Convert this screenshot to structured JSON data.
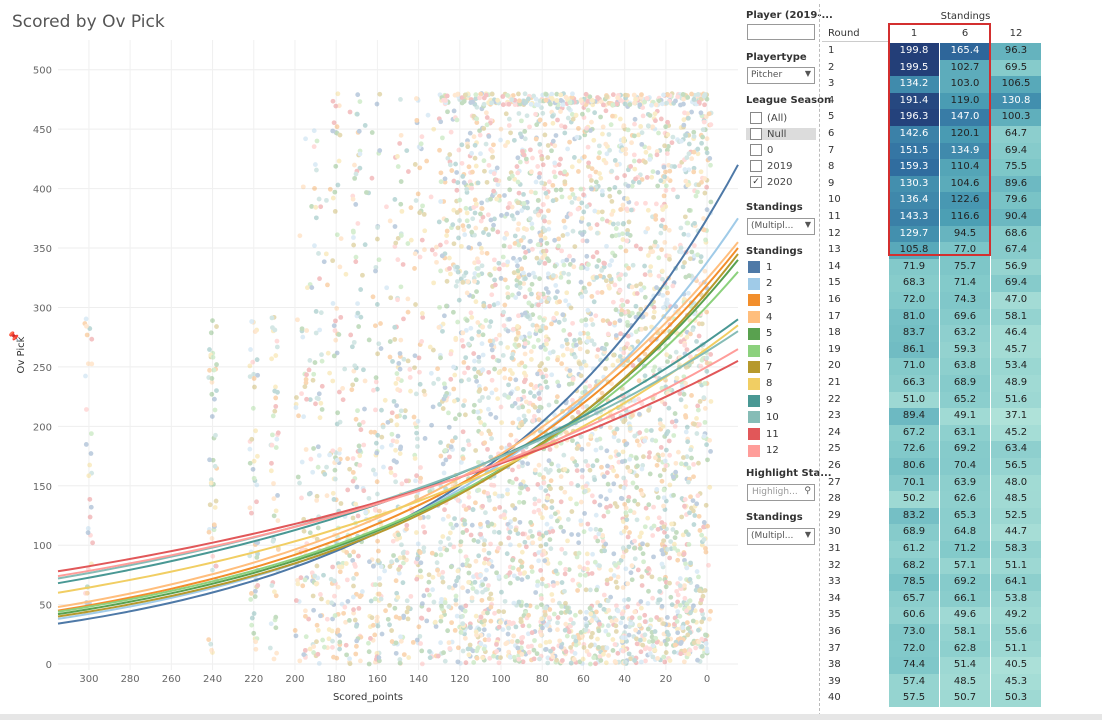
{
  "title": "Scored by Ov Pick",
  "chart_data": {
    "type": "scatter",
    "title": "Scored by Ov Pick",
    "xlabel": "Scored_points",
    "ylabel": "Ov Pick",
    "x_ticks": [
      300,
      280,
      260,
      240,
      220,
      200,
      180,
      160,
      140,
      120,
      100,
      80,
      60,
      40,
      20,
      0
    ],
    "y_ticks": [
      0,
      50,
      100,
      150,
      200,
      250,
      300,
      350,
      400,
      450,
      500
    ],
    "xlim": [
      315,
      -15
    ],
    "ylim": [
      -5,
      525
    ],
    "x_reversed": true,
    "trend_lines": [
      {
        "standing": "1",
        "color": "#4e79a7",
        "y_at_315": 34,
        "y_at_-15": 420
      },
      {
        "standing": "2",
        "color": "#a0cbe8",
        "y_at_315": 38,
        "y_at_-15": 375
      },
      {
        "standing": "3",
        "color": "#f28e2b",
        "y_at_315": 45,
        "y_at_-15": 350
      },
      {
        "standing": "4",
        "color": "#ffbe7d",
        "y_at_315": 48,
        "y_at_-15": 355
      },
      {
        "standing": "5",
        "color": "#59a14f",
        "y_at_315": 42,
        "y_at_-15": 340
      },
      {
        "standing": "6",
        "color": "#8cd17d",
        "y_at_315": 44,
        "y_at_-15": 330
      },
      {
        "standing": "7",
        "color": "#b6992d",
        "y_at_315": 40,
        "y_at_-15": 345
      },
      {
        "standing": "8",
        "color": "#f1ce63",
        "y_at_315": 60,
        "y_at_-15": 285
      },
      {
        "standing": "9",
        "color": "#499894",
        "y_at_315": 68,
        "y_at_-15": 290
      },
      {
        "standing": "10",
        "color": "#86bcb6",
        "y_at_315": 72,
        "y_at_-15": 280
      },
      {
        "standing": "11",
        "color": "#e15759",
        "y_at_315": 78,
        "y_at_-15": 255
      },
      {
        "standing": "12",
        "color": "#ff9d9a",
        "y_at_315": 74,
        "y_at_-15": 265
      }
    ]
  },
  "filters": {
    "player_label": "Player (2019-...",
    "player_value": "",
    "playertype_label": "Playertype",
    "playertype_value": "Pitcher",
    "league_season_label": "League Season",
    "season_options": [
      {
        "label": "(All)",
        "checked": false
      },
      {
        "label": "Null",
        "checked": false
      },
      {
        "label": "0",
        "checked": false
      },
      {
        "label": "2019",
        "checked": false
      },
      {
        "label": "2020",
        "checked": true
      }
    ],
    "standings_label": "Standings",
    "standings_value": "(Multipl...",
    "legend_title": "Standings",
    "legend": [
      {
        "label": "1",
        "color": "#4e79a7"
      },
      {
        "label": "2",
        "color": "#a0cbe8"
      },
      {
        "label": "3",
        "color": "#f28e2b"
      },
      {
        "label": "4",
        "color": "#ffbe7d"
      },
      {
        "label": "5",
        "color": "#59a14f"
      },
      {
        "label": "6",
        "color": "#8cd17d"
      },
      {
        "label": "7",
        "color": "#b6992d"
      },
      {
        "label": "8",
        "color": "#f1ce63"
      },
      {
        "label": "9",
        "color": "#499894"
      },
      {
        "label": "10",
        "color": "#86bcb6"
      },
      {
        "label": "11",
        "color": "#e15759"
      },
      {
        "label": "12",
        "color": "#ff9d9a"
      }
    ],
    "highlight_label": "Highlight Sta...",
    "highlight_placeholder": "Highligh...",
    "standings2_label": "Standings",
    "standings2_value": "(Multipl..."
  },
  "table": {
    "group_header": "Standings",
    "row_header": "Round",
    "col_headers": [
      "1",
      "6",
      "12"
    ],
    "rows": [
      [
        "1",
        "199.8",
        "165.4",
        "96.3"
      ],
      [
        "2",
        "199.5",
        "102.7",
        "69.5"
      ],
      [
        "3",
        "134.2",
        "103.0",
        "106.5"
      ],
      [
        "4",
        "191.4",
        "119.0",
        "130.8"
      ],
      [
        "5",
        "196.3",
        "147.0",
        "100.3"
      ],
      [
        "6",
        "142.6",
        "120.1",
        "64.7"
      ],
      [
        "7",
        "151.5",
        "134.9",
        "69.4"
      ],
      [
        "8",
        "159.3",
        "110.4",
        "75.5"
      ],
      [
        "9",
        "130.3",
        "104.6",
        "89.6"
      ],
      [
        "10",
        "136.4",
        "122.6",
        "79.6"
      ],
      [
        "11",
        "143.3",
        "116.6",
        "90.4"
      ],
      [
        "12",
        "129.7",
        "94.5",
        "68.6"
      ],
      [
        "13",
        "105.8",
        "77.0",
        "67.4"
      ],
      [
        "14",
        "71.9",
        "75.7",
        "56.9"
      ],
      [
        "15",
        "68.3",
        "71.4",
        "69.4"
      ],
      [
        "16",
        "72.0",
        "74.3",
        "47.0"
      ],
      [
        "17",
        "81.0",
        "69.6",
        "58.1"
      ],
      [
        "18",
        "83.7",
        "63.2",
        "46.4"
      ],
      [
        "19",
        "86.1",
        "59.3",
        "45.7"
      ],
      [
        "20",
        "71.0",
        "63.8",
        "53.4"
      ],
      [
        "21",
        "66.3",
        "68.9",
        "48.9"
      ],
      [
        "22",
        "51.0",
        "65.2",
        "51.6"
      ],
      [
        "23",
        "89.4",
        "49.1",
        "37.1"
      ],
      [
        "24",
        "67.2",
        "63.1",
        "45.2"
      ],
      [
        "25",
        "72.6",
        "69.2",
        "63.4"
      ],
      [
        "26",
        "80.6",
        "70.4",
        "56.5"
      ],
      [
        "27",
        "70.1",
        "63.9",
        "48.0"
      ],
      [
        "28",
        "50.2",
        "62.6",
        "48.5"
      ],
      [
        "29",
        "83.2",
        "65.3",
        "52.5"
      ],
      [
        "30",
        "68.9",
        "64.8",
        "44.7"
      ],
      [
        "31",
        "61.2",
        "71.2",
        "58.3"
      ],
      [
        "32",
        "68.2",
        "57.1",
        "51.1"
      ],
      [
        "33",
        "78.5",
        "69.2",
        "64.1"
      ],
      [
        "34",
        "65.7",
        "66.1",
        "53.8"
      ],
      [
        "35",
        "60.6",
        "49.6",
        "49.2"
      ],
      [
        "36",
        "73.0",
        "58.1",
        "55.6"
      ],
      [
        "37",
        "72.0",
        "62.8",
        "51.1"
      ],
      [
        "38",
        "74.4",
        "51.4",
        "40.5"
      ],
      [
        "39",
        "57.4",
        "48.5",
        "45.3"
      ],
      [
        "40",
        "57.5",
        "50.7",
        "50.3"
      ]
    ]
  }
}
